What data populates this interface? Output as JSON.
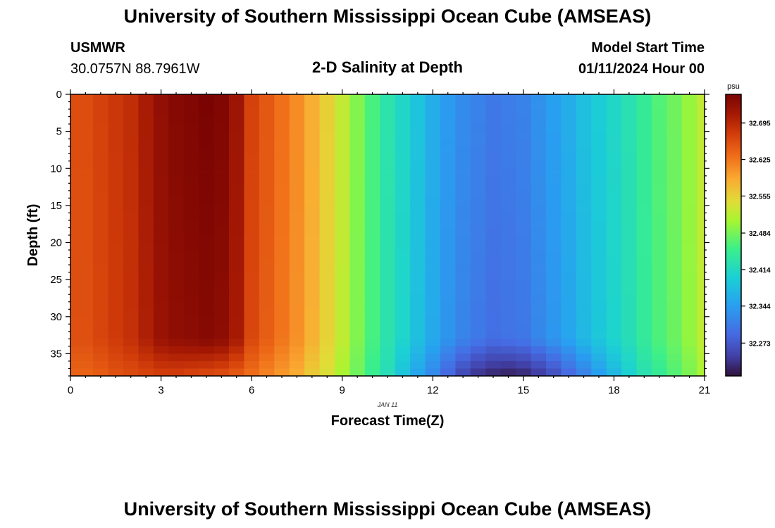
{
  "header": {
    "title": "University of Southern Mississippi Ocean Cube (AMSEAS)",
    "station": "USMWR",
    "coords": "30.0757N  88.7961W",
    "subtitle": "2-D Salinity at Depth",
    "model_start_label": "Model Start Time",
    "model_start_value": "01/11/2024 Hour 00"
  },
  "footer": {
    "title": "University of Southern Mississippi Ocean Cube (AMSEAS)"
  },
  "chart_data": {
    "type": "heatmap",
    "title": "2-D Salinity at Depth",
    "xlabel": "Forecast Time(Z)",
    "ylabel": "Depth (ft)",
    "date_label": "JAN 11",
    "xlim": [
      0,
      21
    ],
    "ylim": [
      0,
      38
    ],
    "xticks": [
      0,
      3,
      6,
      9,
      12,
      15,
      18,
      21
    ],
    "yticks": [
      0,
      5,
      10,
      15,
      20,
      25,
      30,
      35
    ],
    "units": "psu",
    "colorbar_ticks": [
      "32.695",
      "32.625",
      "32.555",
      "32.484",
      "32.414",
      "32.344",
      "32.273"
    ],
    "colorbar_range": [
      32.21,
      32.75
    ],
    "time_step": 0.5,
    "surface_values": [
      32.66,
      32.66,
      32.67,
      32.68,
      32.69,
      32.71,
      32.73,
      32.74,
      32.745,
      32.75,
      32.745,
      32.72,
      32.67,
      32.65,
      32.63,
      32.61,
      32.585,
      32.555,
      32.525,
      32.49,
      32.46,
      32.43,
      32.41,
      32.385,
      32.36,
      32.34,
      32.325,
      32.315,
      32.305,
      32.31,
      32.315,
      32.33,
      32.345,
      32.36,
      32.38,
      32.395,
      32.41,
      32.425,
      32.445,
      32.465,
      32.48,
      32.5,
      32.525
    ],
    "bottom_values": [
      32.64,
      32.64,
      32.645,
      32.655,
      32.66,
      32.665,
      32.67,
      32.67,
      32.665,
      32.66,
      32.655,
      32.645,
      32.63,
      32.615,
      32.6,
      32.585,
      32.56,
      32.54,
      32.51,
      32.48,
      32.45,
      32.42,
      32.385,
      32.35,
      32.32,
      32.285,
      32.255,
      32.235,
      32.225,
      32.22,
      32.225,
      32.24,
      32.26,
      32.285,
      32.31,
      32.34,
      32.37,
      32.4,
      32.425,
      32.445,
      32.465,
      32.485,
      32.51
    ]
  }
}
